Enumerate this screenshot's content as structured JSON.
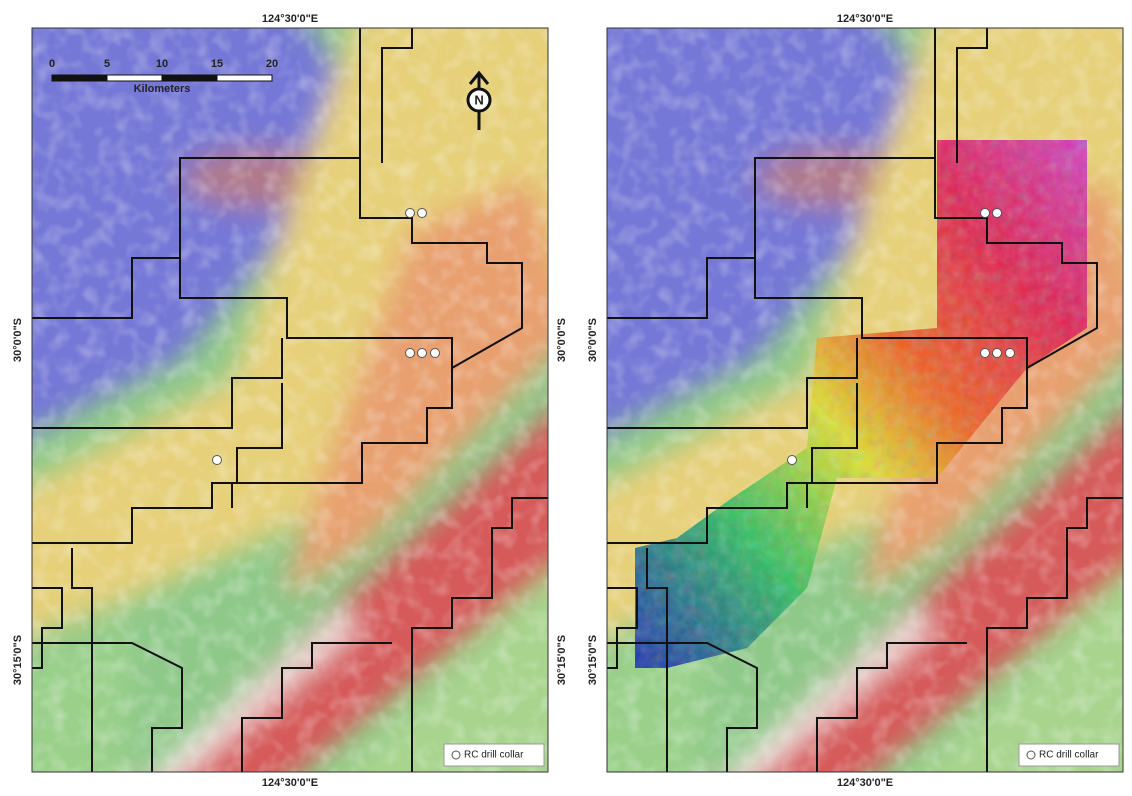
{
  "panels": [
    {
      "top_label": "124°30'0\"E",
      "bottom_label": "124°30'0\"E",
      "left_labels": [
        "30°0'0\"S",
        "30°15'0\"S"
      ],
      "right_labels": [
        "30°0'0\"S",
        "30°15'0\"S"
      ],
      "legend": "RC drill collar"
    },
    {
      "top_label": "124°30'0\"E",
      "bottom_label": "124°30'0\"E",
      "left_labels": [
        "30°0'0\"S",
        "30°15'0\"S"
      ],
      "legend": "RC drill collar"
    }
  ],
  "scale_bar": {
    "ticks": [
      "0",
      "5",
      "10",
      "15",
      "20"
    ],
    "unit": "Kilometers"
  },
  "north_arrow": "N"
}
